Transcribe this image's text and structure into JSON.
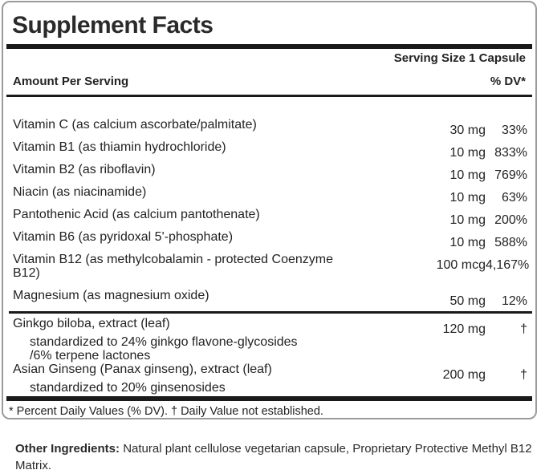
{
  "panel": {
    "title": "Supplement Facts",
    "serving_size": "Serving Size 1 Capsule",
    "columns": {
      "amount_header": "Amount Per Serving",
      "dv_header": "% DV*"
    },
    "rows": [
      {
        "name": "Vitamin C (as calcium ascorbate/palmitate)",
        "amount": "30 mg",
        "dv": "33%"
      },
      {
        "name": "Vitamin B1 (as thiamin hydrochloride)",
        "amount": "10 mg",
        "dv": "833%"
      },
      {
        "name": "Vitamin B2 (as riboflavin)",
        "amount": "10 mg",
        "dv": "769%"
      },
      {
        "name": "Niacin (as niacinamide)",
        "amount": "10 mg",
        "dv": "63%"
      },
      {
        "name": "Pantothenic Acid (as calcium pantothenate)",
        "amount": "10 mg",
        "dv": "200%"
      },
      {
        "name": "Vitamin B6 (as pyridoxal 5'-phosphate)",
        "amount": "10 mg",
        "dv": "588%"
      },
      {
        "name": "Vitamin B12 (as methylcobalamin - protected Coenzyme B12)",
        "amount": "100 mcg",
        "dv": "4,167%"
      },
      {
        "name": "Magnesium (as magnesium oxide)",
        "amount": "50 mg",
        "dv": "12%",
        "divider_after": true
      },
      {
        "name": "Ginkgo biloba, extract (leaf)",
        "amount": "120 mg",
        "dv": "†",
        "sub": [
          "standardized to 24% ginkgo flavone-glycosides",
          "/6% terpene lactones"
        ]
      },
      {
        "name": "Asian Ginseng (Panax ginseng), extract (leaf)",
        "amount": "200 mg",
        "dv": "†",
        "sub": [
          "standardized to 20% ginsenosides"
        ]
      }
    ],
    "footnote": "* Percent Daily Values (% DV). † Daily Value not established."
  },
  "other_ingredients": {
    "lead": "Other Ingredients:",
    "text": "Natural plant cellulose vegetarian capsule, Proprietary Protective Methyl B12 Matrix."
  },
  "colors": {
    "text": "#232323",
    "rule": "#1a1a1a",
    "border": "#9b9b9b"
  }
}
